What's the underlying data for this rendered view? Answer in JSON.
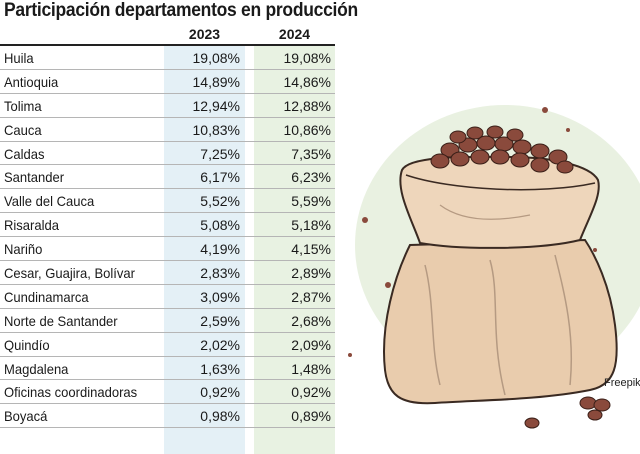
{
  "title": "Participación departamentos en producción",
  "columns": [
    "2023",
    "2024"
  ],
  "rows": [
    {
      "dept": "Huila",
      "v2023": "19,08%",
      "v2024": "19,08%"
    },
    {
      "dept": "Antioquia",
      "v2023": "14,89%",
      "v2024": "14,86%"
    },
    {
      "dept": "Tolima",
      "v2023": "12,94%",
      "v2024": "12,88%"
    },
    {
      "dept": "Cauca",
      "v2023": "10,83%",
      "v2024": "10,86%"
    },
    {
      "dept": "Caldas",
      "v2023": "7,25%",
      "v2024": "7,35%"
    },
    {
      "dept": "Santander",
      "v2023": "6,17%",
      "v2024": "6,23%"
    },
    {
      "dept": "Valle del Cauca",
      "v2023": "5,52%",
      "v2024": "5,59%"
    },
    {
      "dept": "Risaralda",
      "v2023": "5,08%",
      "v2024": "5,18%"
    },
    {
      "dept": "Nariño",
      "v2023": "4,19%",
      "v2024": "4,15%"
    },
    {
      "dept": "Cesar, Guajira, Bolívar",
      "v2023": "2,83%",
      "v2024": "2,89%"
    },
    {
      "dept": "Cundinamarca",
      "v2023": "3,09%",
      "v2024": "2,87%"
    },
    {
      "dept": "Norte de Santander",
      "v2023": "2,59%",
      "v2024": "2,68%"
    },
    {
      "dept": "Quindío",
      "v2023": "2,02%",
      "v2024": "2,09%"
    },
    {
      "dept": "Magdalena",
      "v2023": "1,63%",
      "v2024": "1,48%"
    },
    {
      "dept": "Oficinas coordinadoras",
      "v2023": "0,92%",
      "v2024": "0,92%"
    },
    {
      "dept": "Boyacá",
      "v2023": "0,98%",
      "v2024": "0,89%"
    }
  ],
  "illustration": {
    "icon": "coffee-sack-illustration",
    "credit": "Freepik"
  },
  "colors": {
    "col2023": "#e4f0f6",
    "col2024": "#e8f2e2",
    "sack": "#e8cdb0",
    "beans": "#8a4a3c",
    "blob": "#e8f0e0"
  }
}
